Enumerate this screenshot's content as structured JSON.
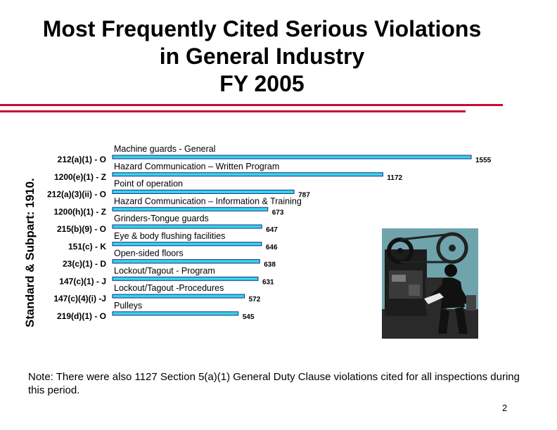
{
  "title": {
    "line1": "Most Frequently Cited Serious Violations",
    "line2": "in General Industry",
    "line3": "FY 2005"
  },
  "colors": {
    "accent_rule": "#cc0a2f",
    "bar_fill": "#33d6e6",
    "bar_edge": "#1c2a8a"
  },
  "chart_data": {
    "type": "bar",
    "orientation": "horizontal",
    "ylabel": "Standard & Subpart: 1910.",
    "categories": [
      "212(a)(1) - O",
      "1200(e)(1) - Z",
      "212(a)(3)(ii) - O",
      "1200(h)(1) - Z",
      "215(b)(9) - O",
      "151(c) - K",
      "23(c)(1) - D",
      "147(c)(1) - J",
      "147(c)(4)(i) -J",
      "219(d)(1) - O"
    ],
    "descriptions": [
      "Machine guards - General",
      "Hazard Communication – Written Program",
      "Point of operation",
      "Hazard Communication – Information & Training",
      "Grinders-Tongue guards",
      "Eye & body flushing facilities",
      "Open-sided floors",
      "Lockout/Tagout - Program",
      "Lockout/Tagout -Procedures",
      "Pulleys"
    ],
    "values": [
      1555,
      1172,
      787,
      673,
      647,
      646,
      638,
      631,
      572,
      545
    ],
    "value_labels": [
      "1555",
      "1172",
      "787",
      "673",
      "647",
      "646",
      "638",
      "631",
      "572",
      "545"
    ],
    "grid": false,
    "legend": "none"
  },
  "note": "Note: There were also 1127 Section 5(a)(1) General Duty Clause violations cited for all inspections during this period.",
  "page_number": "2",
  "illustration_icon": "factory-worker-machine-clipart"
}
